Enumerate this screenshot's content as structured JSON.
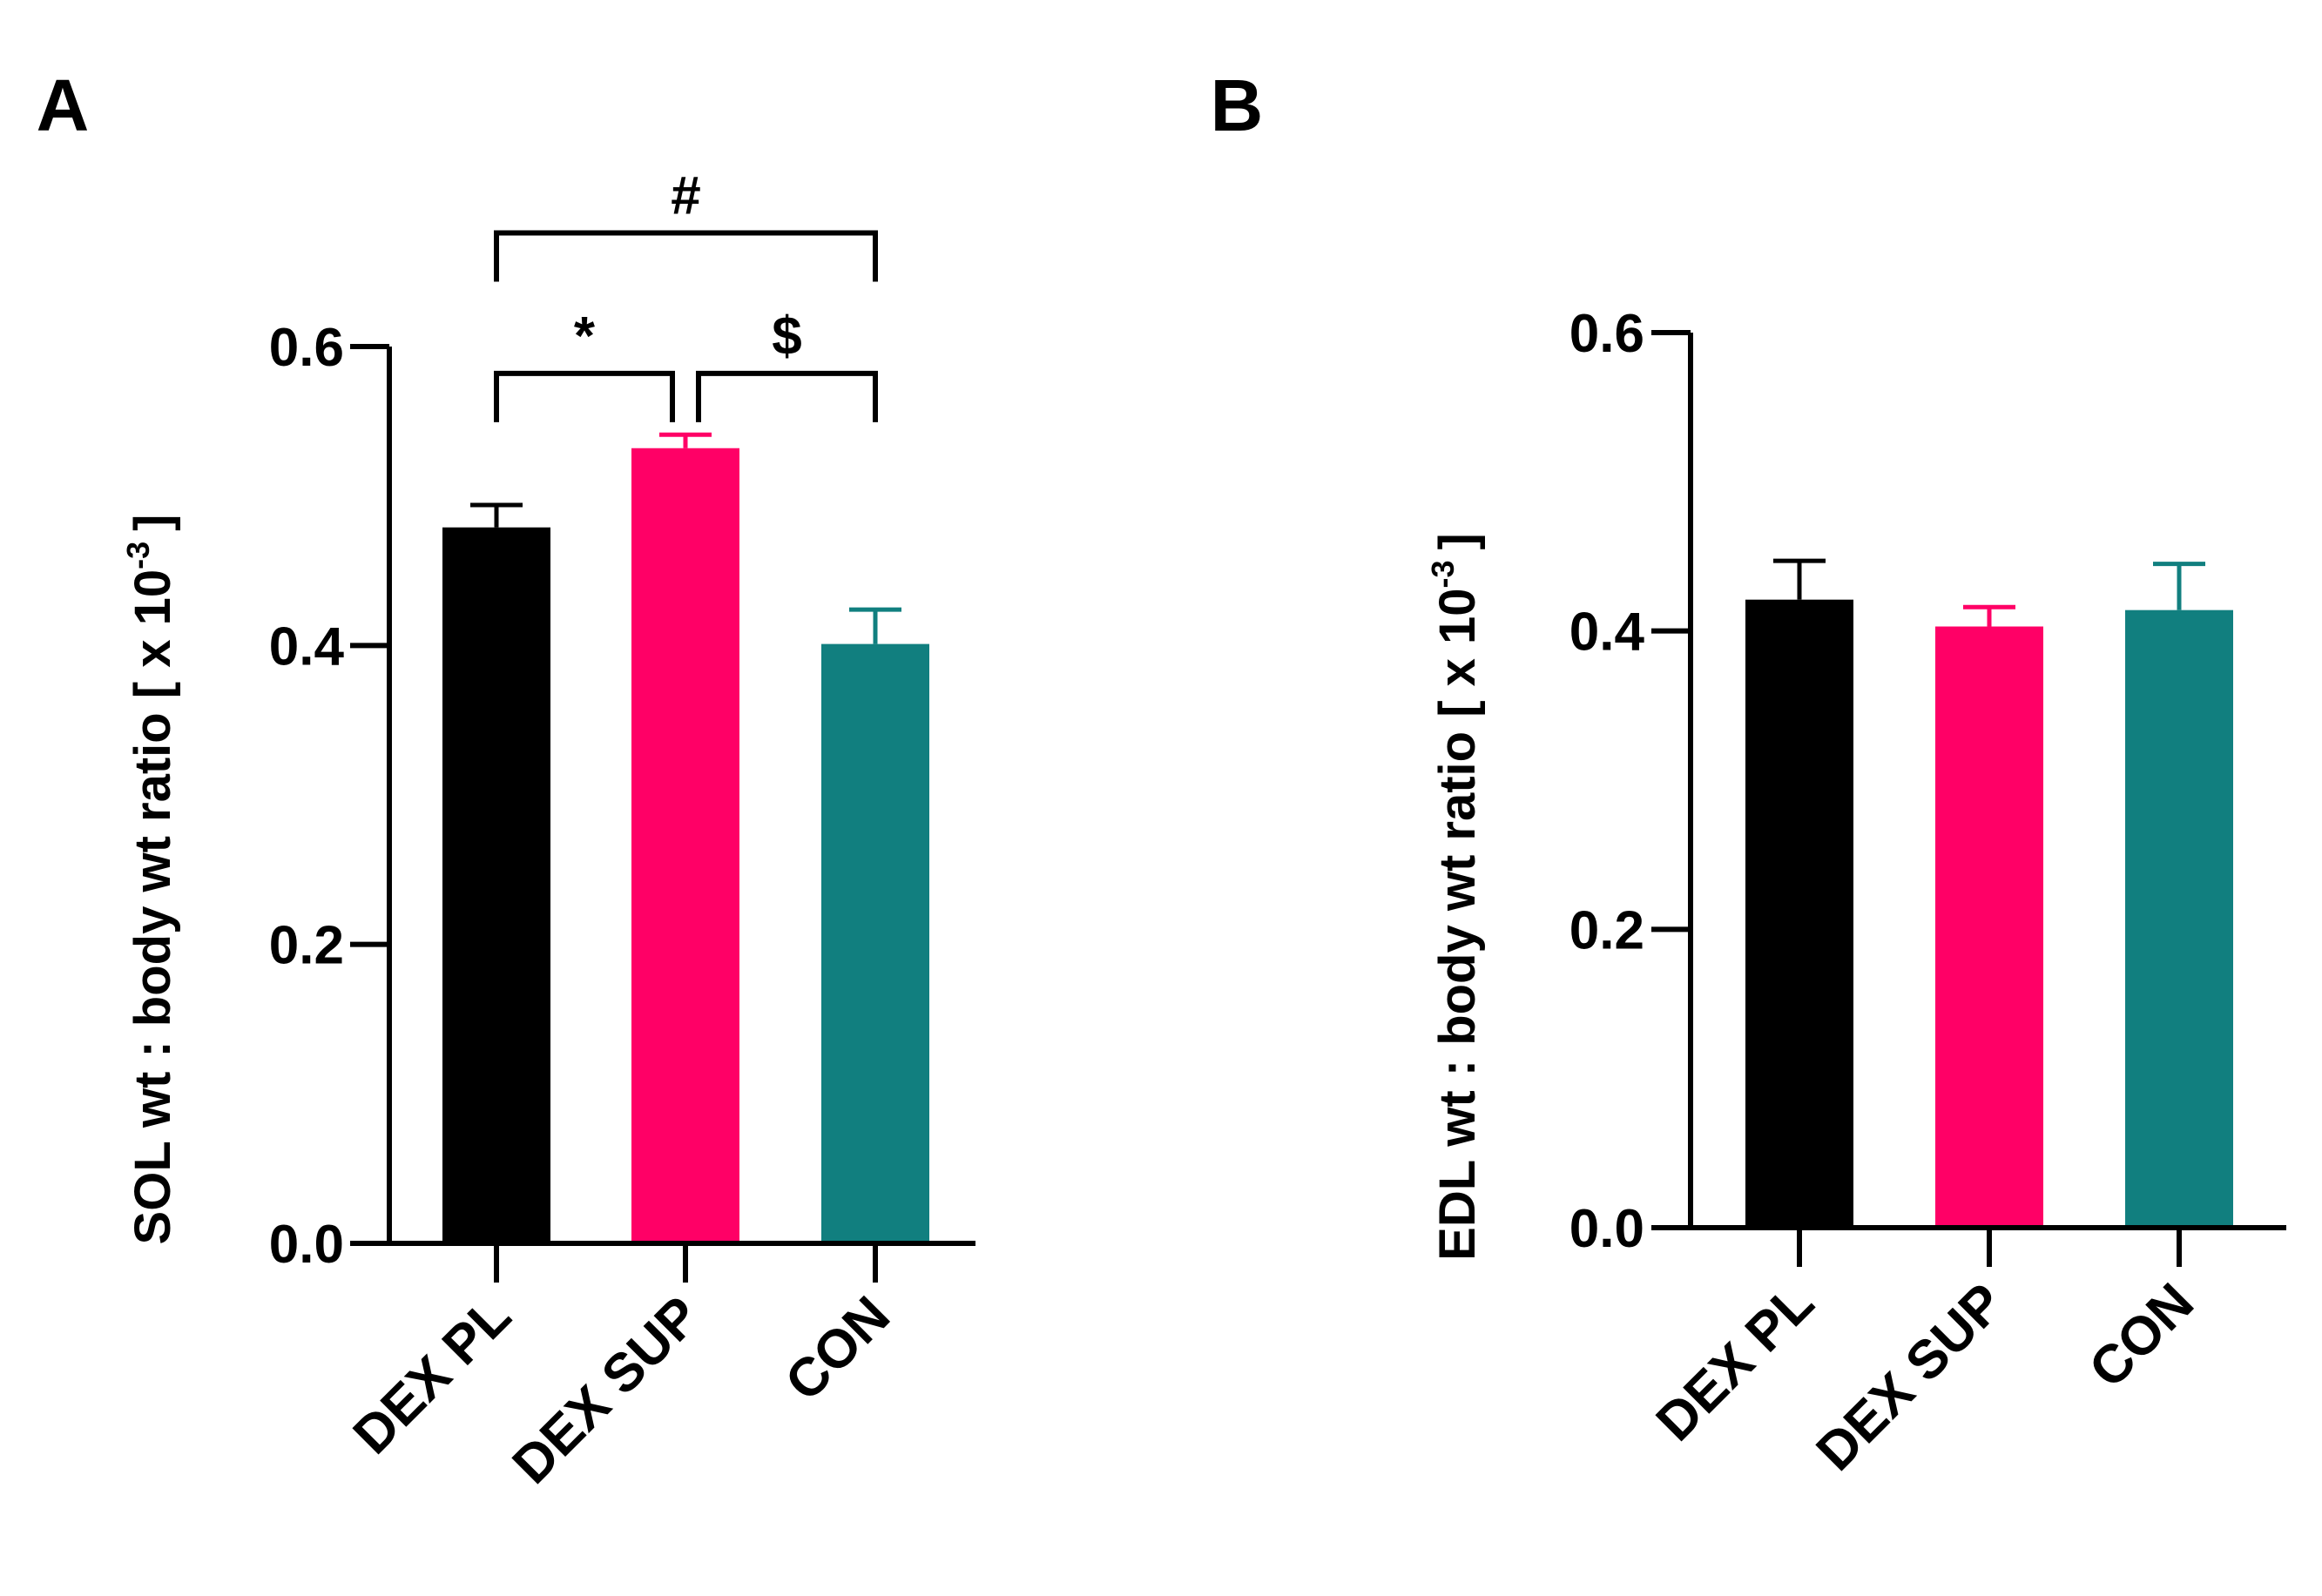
{
  "colors": {
    "axis": "#000000",
    "dex_pl": "#000000",
    "dex_sup": "#ff0066",
    "con": "#117f7f"
  },
  "chart_data": [
    {
      "type": "bar",
      "panel_label": "A",
      "ylabel": "SOL wt : body wt ratio [ x 10",
      "ylabel_superscript": "-3",
      "ylabel_close": "]",
      "ylim": [
        0,
        0.6
      ],
      "yticks": [
        0.0,
        0.2,
        0.4,
        0.6
      ],
      "ytick_labels": [
        "0.0",
        "0.2",
        "0.4",
        "0.6"
      ],
      "categories": [
        "DEX PL",
        "DEX SUP",
        "CON"
      ],
      "values": [
        0.479,
        0.532,
        0.401
      ],
      "errors": [
        0.015,
        0.009,
        0.023
      ],
      "bar_colors": [
        "#000000",
        "#ff0066",
        "#117f7f"
      ],
      "annotations": [
        {
          "from": 0,
          "to": 2,
          "level": 0.676,
          "label": "#"
        },
        {
          "from": 0,
          "to": 1,
          "level": 0.582,
          "label": "*"
        },
        {
          "from": 1,
          "to": 2,
          "level": 0.582,
          "label": "$"
        }
      ]
    },
    {
      "type": "bar",
      "panel_label": "B",
      "ylabel": "EDL wt : body wt ratio [ x 10",
      "ylabel_superscript": "-3",
      "ylabel_close": "]",
      "ylim": [
        0,
        0.6
      ],
      "yticks": [
        0.0,
        0.2,
        0.4,
        0.6
      ],
      "ytick_labels": [
        "0.0",
        "0.2",
        "0.4",
        "0.6"
      ],
      "categories": [
        "DEX PL",
        "DEX SUP",
        "CON"
      ],
      "values": [
        0.421,
        0.403,
        0.414
      ],
      "errors": [
        0.026,
        0.013,
        0.031
      ],
      "bar_colors": [
        "#000000",
        "#ff0066",
        "#117f7f"
      ],
      "annotations": []
    }
  ]
}
